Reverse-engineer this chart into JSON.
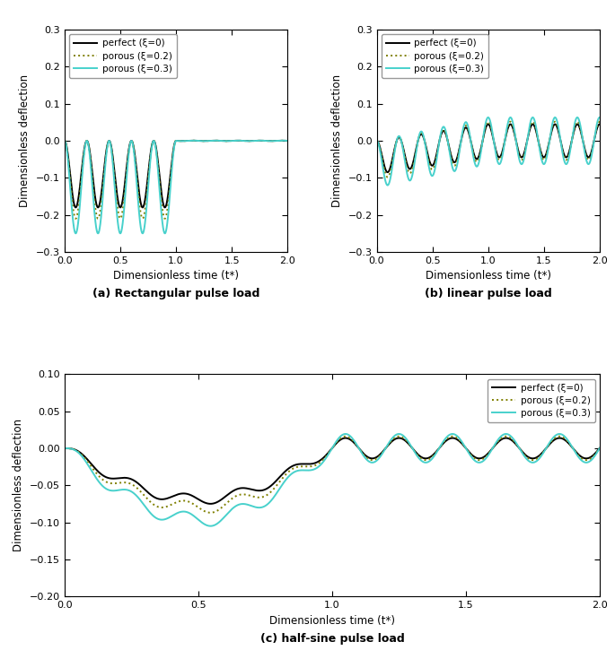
{
  "color_perfect": "#000000",
  "color_porous02": "#808000",
  "color_porous03": "#48D1CC",
  "ylabel": "Dimensionless deflection",
  "xlabel": "Dimensionless time (t*)",
  "legend_labels": [
    "perfect (ξ=0)",
    "porous (ξ=0.2)",
    "porous (ξ=0.3)"
  ],
  "title_a": "(a) Rectangular pulse load",
  "title_b": "(b) linear pulse load",
  "title_c": "(c) half-sine pulse load",
  "xlim": [
    0.0,
    2.0
  ],
  "ylim_ab": [
    -0.3,
    0.3
  ],
  "ylim_c": [
    -0.2,
    0.1
  ],
  "yticks_ab": [
    -0.3,
    -0.2,
    -0.1,
    0.0,
    0.1,
    0.2,
    0.3
  ],
  "yticks_c": [
    -0.2,
    -0.15,
    -0.1,
    -0.05,
    0.0,
    0.05,
    0.1
  ],
  "xticks": [
    0.0,
    0.5,
    1.0,
    1.5,
    2.0
  ],
  "freq_a": 5.0,
  "amp_perf_a": 0.18,
  "amp_02_a": 0.21,
  "amp_03_a": 0.25,
  "amp_perf_b": 0.085,
  "amp_02_b": 0.098,
  "amp_03_b": 0.12,
  "amp_perf_c": 0.075,
  "amp_02_c": 0.087,
  "amp_03_c": 0.105
}
